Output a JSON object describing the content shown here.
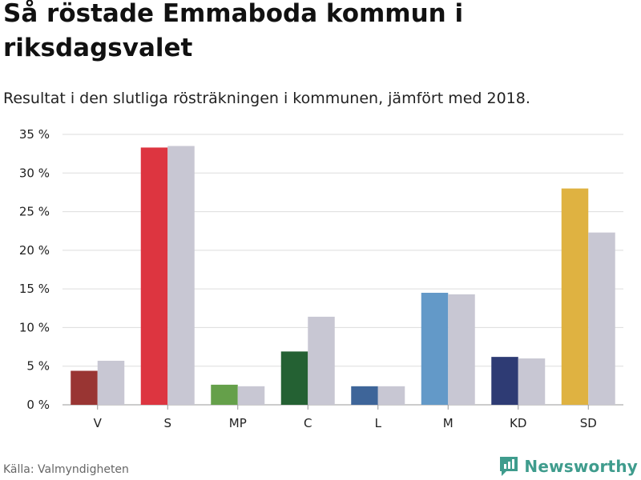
{
  "title": "Så röstade Emmaboda kommun i riksdagsvalet",
  "subtitle": "Resultat i den slutliga rösträkningen i kommunen, jämfört med 2018.",
  "source": "Källa: Valmyndigheten",
  "logo_text": "Newsworthy",
  "colors": {
    "comparison": "#c8c7d3",
    "grid": "#dddddd",
    "logo": "#3f9c8d"
  },
  "chart_data": {
    "type": "bar",
    "categories": [
      "V",
      "S",
      "MP",
      "C",
      "L",
      "M",
      "KD",
      "SD"
    ],
    "series": [
      {
        "values": [
          4.4,
          33.3,
          2.6,
          6.9,
          2.4,
          14.5,
          6.2,
          28.0
        ],
        "colors": [
          "#993533",
          "#dd3540",
          "#65a04a",
          "#246133",
          "#3e6599",
          "#6399c8",
          "#2e3b74",
          "#dfb241"
        ]
      },
      {
        "values": [
          5.7,
          33.5,
          2.4,
          11.4,
          2.4,
          14.3,
          6.0,
          22.3
        ],
        "colors": [
          "#c8c7d3",
          "#c8c7d3",
          "#c8c7d3",
          "#c8c7d3",
          "#c8c7d3",
          "#c8c7d3",
          "#c8c7d3",
          "#c8c7d3"
        ]
      }
    ],
    "ylim": [
      0,
      35
    ],
    "yticks": [
      0,
      5,
      10,
      15,
      20,
      25,
      30,
      35
    ],
    "ytick_labels": [
      "0 %",
      "5 %",
      "10 %",
      "15 %",
      "20 %",
      "25 %",
      "30 %",
      "35 %"
    ],
    "grid": true,
    "legend": "none"
  }
}
